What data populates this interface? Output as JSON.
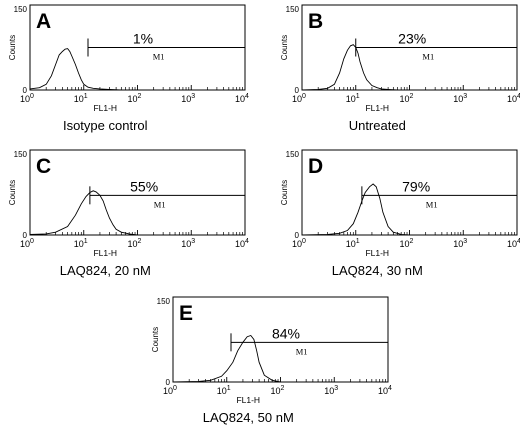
{
  "chart_data": [
    {
      "type": "line",
      "panel_letter": "A",
      "caption": "Isotype control",
      "xlabel": "FL1-H",
      "ylabel": "Counts",
      "x_scale": "log",
      "xlim": [
        1,
        10000
      ],
      "ylim": [
        0,
        150
      ],
      "x_ticks": [
        {
          "base": "10",
          "exp": "0"
        },
        {
          "base": "10",
          "exp": "1"
        },
        {
          "base": "10",
          "exp": "2"
        },
        {
          "base": "10",
          "exp": "3"
        },
        {
          "base": "10",
          "exp": "4"
        }
      ],
      "y_ticks": [
        "0",
        "150"
      ],
      "gate": {
        "label": "M1",
        "start": 12,
        "end": 10000,
        "level": 75
      },
      "percent_label": "1%",
      "histogram": {
        "x": [
          1,
          1.5,
          2,
          2.5,
          3,
          3.5,
          4,
          4.5,
          5,
          5.5,
          6,
          7,
          8,
          9,
          10,
          12,
          15,
          20,
          30,
          50,
          100
        ],
        "y": [
          2,
          4,
          10,
          25,
          45,
          62,
          68,
          72,
          73,
          68,
          60,
          45,
          30,
          18,
          10,
          5,
          3,
          2,
          1,
          0,
          0
        ]
      }
    },
    {
      "type": "line",
      "panel_letter": "B",
      "caption": "Untreated",
      "xlabel": "FL1-H",
      "ylabel": "Counts",
      "x_scale": "log",
      "xlim": [
        1,
        10000
      ],
      "ylim": [
        0,
        150
      ],
      "x_ticks": [
        {
          "base": "10",
          "exp": "0"
        },
        {
          "base": "10",
          "exp": "1"
        },
        {
          "base": "10",
          "exp": "2"
        },
        {
          "base": "10",
          "exp": "3"
        },
        {
          "base": "10",
          "exp": "4"
        }
      ],
      "y_ticks": [
        "0",
        "150"
      ],
      "gate": {
        "label": "M1",
        "start": 10,
        "end": 10000,
        "level": 75
      },
      "percent_label": "23%",
      "histogram": {
        "x": [
          1,
          2,
          3,
          4,
          5,
          6,
          7,
          8,
          9,
          10,
          11,
          12,
          14,
          16,
          20,
          25,
          30,
          40,
          60,
          100
        ],
        "y": [
          0,
          1,
          3,
          10,
          30,
          55,
          70,
          78,
          80,
          75,
          65,
          50,
          30,
          18,
          8,
          4,
          2,
          1,
          0,
          0
        ]
      }
    },
    {
      "type": "line",
      "panel_letter": "C",
      "caption": "LAQ824, 20 nM",
      "xlabel": "FL1-H",
      "ylabel": "Counts",
      "x_scale": "log",
      "xlim": [
        1,
        10000
      ],
      "ylim": [
        0,
        150
      ],
      "x_ticks": [
        {
          "base": "10",
          "exp": "0"
        },
        {
          "base": "10",
          "exp": "1"
        },
        {
          "base": "10",
          "exp": "2"
        },
        {
          "base": "10",
          "exp": "3"
        },
        {
          "base": "10",
          "exp": "4"
        }
      ],
      "y_ticks": [
        "0",
        "150"
      ],
      "gate": {
        "label": "M1",
        "start": 13,
        "end": 10000,
        "level": 70
      },
      "percent_label": "55%",
      "histogram": {
        "x": [
          1,
          2,
          3,
          5,
          7,
          9,
          11,
          13,
          15,
          17,
          20,
          23,
          26,
          30,
          35,
          40,
          50,
          70,
          100
        ],
        "y": [
          1,
          2,
          5,
          15,
          35,
          55,
          68,
          75,
          78,
          76,
          70,
          60,
          45,
          30,
          18,
          10,
          5,
          2,
          0
        ]
      }
    },
    {
      "type": "line",
      "panel_letter": "D",
      "caption": "LAQ824, 30 nM",
      "xlabel": "FL1-H",
      "ylabel": "Counts",
      "x_scale": "log",
      "xlim": [
        1,
        10000
      ],
      "ylim": [
        0,
        150
      ],
      "x_ticks": [
        {
          "base": "10",
          "exp": "0"
        },
        {
          "base": "10",
          "exp": "1"
        },
        {
          "base": "10",
          "exp": "2"
        },
        {
          "base": "10",
          "exp": "3"
        },
        {
          "base": "10",
          "exp": "4"
        }
      ],
      "y_ticks": [
        "0",
        "150"
      ],
      "gate": {
        "label": "M1",
        "start": 13,
        "end": 10000,
        "level": 70
      },
      "percent_label": "79%",
      "histogram": {
        "x": [
          1,
          3,
          5,
          7,
          9,
          11,
          13,
          15,
          18,
          21,
          24,
          28,
          32,
          40,
          50,
          70,
          100
        ],
        "y": [
          0,
          1,
          3,
          8,
          20,
          40,
          60,
          75,
          85,
          90,
          85,
          65,
          40,
          15,
          5,
          1,
          0
        ]
      }
    },
    {
      "type": "line",
      "panel_letter": "E",
      "caption": "LAQ824,  50 nM",
      "xlabel": "FL1-H",
      "ylabel": "Counts",
      "x_scale": "log",
      "xlim": [
        1,
        10000
      ],
      "ylim": [
        0,
        150
      ],
      "x_ticks": [
        {
          "base": "10",
          "exp": "0"
        },
        {
          "base": "10",
          "exp": "1"
        },
        {
          "base": "10",
          "exp": "2"
        },
        {
          "base": "10",
          "exp": "3"
        },
        {
          "base": "10",
          "exp": "4"
        }
      ],
      "y_ticks": [
        "0",
        "150"
      ],
      "gate": {
        "label": "M1",
        "start": 12,
        "end": 10000,
        "level": 70
      },
      "percent_label": "84%",
      "histogram": {
        "x": [
          1,
          3,
          5,
          8,
          10,
          13,
          16,
          20,
          24,
          28,
          32,
          36,
          40,
          50,
          70,
          100
        ],
        "y": [
          0,
          1,
          3,
          10,
          20,
          35,
          55,
          70,
          80,
          82,
          75,
          55,
          35,
          12,
          3,
          0
        ]
      }
    }
  ]
}
